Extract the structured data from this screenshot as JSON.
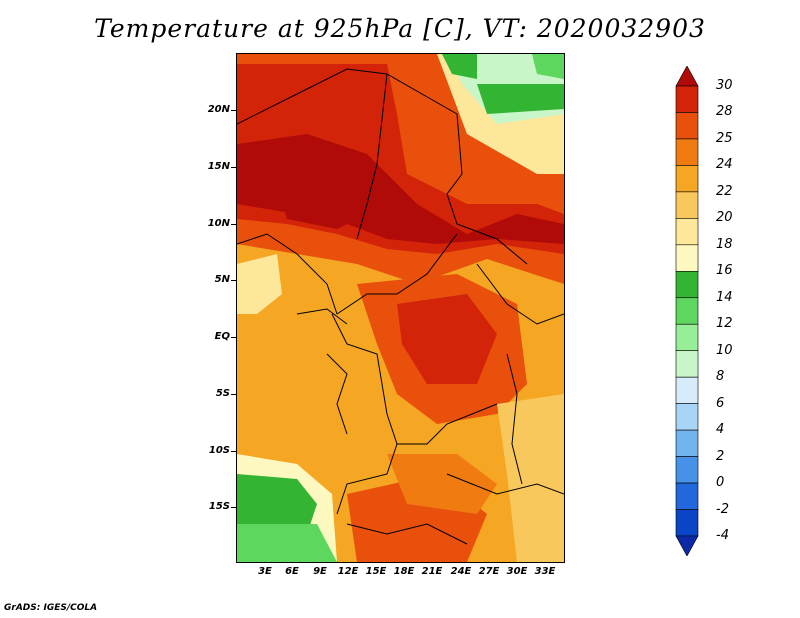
{
  "title": "Temperature at 925hPa [C], VT: 2020032903",
  "credit": "GrADS: IGES/COLA",
  "map": {
    "lat_labels": [
      "20N",
      "15N",
      "10N",
      "5N",
      "EQ",
      "5S",
      "10S",
      "15S"
    ],
    "lon_labels": [
      "3E",
      "6E",
      "9E",
      "12E",
      "15E",
      "18E",
      "21E",
      "24E",
      "27E",
      "30E",
      "33E"
    ],
    "lat_range": [
      -19,
      24
    ],
    "lon_range": [
      0,
      35
    ],
    "unit": "C"
  },
  "colorbar": {
    "labels": [
      "30",
      "28",
      "25",
      "24",
      "22",
      "20",
      "18",
      "16",
      "14",
      "12",
      "10",
      "8",
      "6",
      "4",
      "2",
      "0",
      "-2",
      "-4"
    ],
    "colors": [
      "#b10b09",
      "#d32309",
      "#e8500c",
      "#f07b10",
      "#f5a623",
      "#f9c85c",
      "#fce79a",
      "#fdf7c0",
      "#33b533",
      "#5ed75e",
      "#96ee96",
      "#c8f6c8",
      "#d6ecfb",
      "#a8d4f5",
      "#72b4ed",
      "#4592e6",
      "#2068dc",
      "#0a45c8",
      "#0a2aa8"
    ]
  }
}
